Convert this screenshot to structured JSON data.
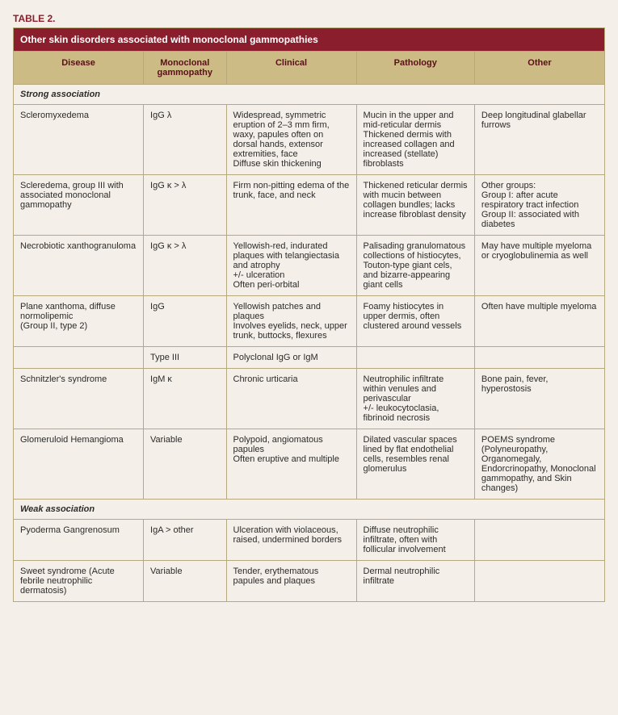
{
  "table_label": "TABLE 2.",
  "table_title": "Other skin disorders associated with monoclonal gammopathies",
  "columns": [
    "Disease",
    "Monoclonal gammopathy",
    "Clinical",
    "Pathology",
    "Other"
  ],
  "sections": [
    {
      "label": "Strong association",
      "rows": [
        {
          "disease": "Scleromyxedema",
          "gammopathy": "IgG λ",
          "clinical": "Widespread,  symmetric eruption of 2–3 mm firm, waxy, papules often on dorsal hands, extensor extremities, face\nDiffuse skin thickening",
          "pathology": "Mucin in the upper and mid-reticular dermis\nThickened dermis with increased collagen and increased (stellate) fibroblasts",
          "other": "Deep longitudinal glabellar furrows"
        },
        {
          "disease": "Scleredema, group III with associated monoclonal gammopathy",
          "gammopathy": "IgG κ > λ",
          "clinical": "Firm non-pitting edema of the trunk, face, and neck",
          "pathology": "Thickened reticular dermis with mucin between collagen bundles; lacks increase fibroblast density",
          "other": "Other groups:\nGroup I: after acute respiratory tract infection\nGroup II: associated with diabetes"
        },
        {
          "disease": "Necrobiotic xanthogranuloma",
          "gammopathy": "IgG κ > λ",
          "clinical": "Yellowish-red, indurated  plaques with telangiectasia and atrophy\n+/- ulceration\nOften peri-orbital",
          "pathology": "Palisading granulomatous collections of histiocytes, Touton-type giant cels, and bizarre-appearing giant cells",
          "other": "May have multiple myeloma or cryoglobulinemia as well"
        },
        {
          "disease": "Plane xanthoma, diffuse normolipemic\n(Group II, type 2)",
          "gammopathy": "IgG",
          "clinical": "Yellowish patches and plaques\nInvolves eyelids, neck, upper trunk, buttocks, flexures",
          "pathology": "Foamy histiocytes in upper dermis, often clustered around vessels",
          "other": "Often have multiple myeloma"
        },
        {
          "disease": "",
          "gammopathy": "Type III",
          "clinical": "Polyclonal IgG or IgM",
          "pathology": "",
          "other": ""
        },
        {
          "disease": "Schnitzler's syndrome",
          "gammopathy": "IgM κ",
          "clinical": "Chronic urticaria",
          "pathology": "Neutrophilic infiltrate within venules and perivascular\n+/- leukocytoclasia, fibrinoid necrosis",
          "other": "Bone pain, fever, hyperostosis"
        },
        {
          "disease": "Glomeruloid Hemangioma",
          "gammopathy": "Variable",
          "clinical": "Polypoid, angiomatous papules\nOften eruptive and multiple",
          "pathology": "Dilated vascular spaces lined by flat endothelial cells, resembles renal glomerulus",
          "other": "POEMS syndrome (Polyneuropathy, Organomegaly, Endorcrinopathy, Monoclonal gammopathy, and Skin changes)"
        }
      ]
    },
    {
      "label": "Weak association",
      "rows": [
        {
          "disease": "Pyoderma Gangrenosum",
          "gammopathy": "IgA > other",
          "clinical": "Ulceration with violaceous, raised, undermined borders",
          "pathology": "Diffuse neutrophilic infiltrate, often with follicular involvement",
          "other": ""
        },
        {
          "disease": "Sweet syndrome (Acute febrile neutrophilic dermatosis)",
          "gammopathy": "Variable",
          "clinical": "Tender, erythematous papules and plaques",
          "pathology": "Dermal neutrophilic infiltrate",
          "other": ""
        }
      ]
    }
  ],
  "colors": {
    "accent": "#8b1e2d",
    "header_bg": "#cdbb86",
    "border": "#b7a97e",
    "page_bg": "#f4f0e9"
  }
}
